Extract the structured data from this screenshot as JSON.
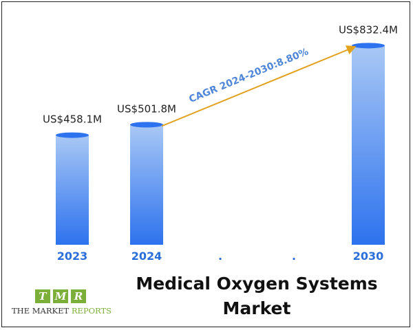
{
  "chart_data": {
    "type": "bar",
    "title": "Medical Oxygen Systems Market",
    "categories": [
      "2023",
      "2024",
      "2030"
    ],
    "values": [
      458.1,
      501.8,
      832.4
    ],
    "value_labels": [
      "US$458.1M",
      "US$501.8M",
      "US$832.4M"
    ],
    "gap_markers": [
      ".",
      "."
    ],
    "annotation": "CAGR 2024-2030:8.80%",
    "xlabel": "",
    "ylabel": "",
    "ylim": [
      0,
      900
    ],
    "grid": false,
    "legend": "none",
    "colors": {
      "bar_top": "#a9c8f5",
      "bar_bottom": "#2d72ee",
      "arrow": "#e2a21e",
      "category_text": "#2a6edb"
    }
  },
  "logo": {
    "letters": [
      "T",
      "M",
      "R"
    ],
    "text_part1": "THE MARKET ",
    "text_part2": "REPORTS"
  }
}
